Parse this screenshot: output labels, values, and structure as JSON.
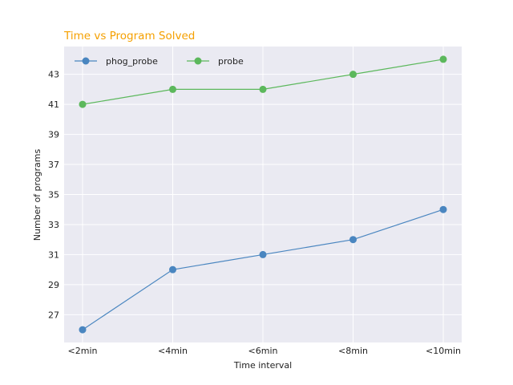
{
  "chart_data": {
    "type": "line",
    "title": "Time vs Program Solved",
    "title_color": "#f5a000",
    "xlabel": "Time interval",
    "ylabel": "Number of programs",
    "categories": [
      "<2min",
      "<4min",
      "<6min",
      "<8min",
      "<10min"
    ],
    "yticks": [
      27,
      29,
      31,
      33,
      35,
      37,
      39,
      41,
      43
    ],
    "ylim": [
      25.15,
      44.85
    ],
    "grid": true,
    "legend_position": "top-left",
    "background_color": "#eaeaf2",
    "series": [
      {
        "name": "phog_probe",
        "color": "#4a86c0",
        "values": [
          26,
          30,
          31,
          32,
          34
        ]
      },
      {
        "name": "probe",
        "color": "#5cb85c",
        "values": [
          41,
          42,
          42,
          43,
          44
        ]
      }
    ]
  }
}
